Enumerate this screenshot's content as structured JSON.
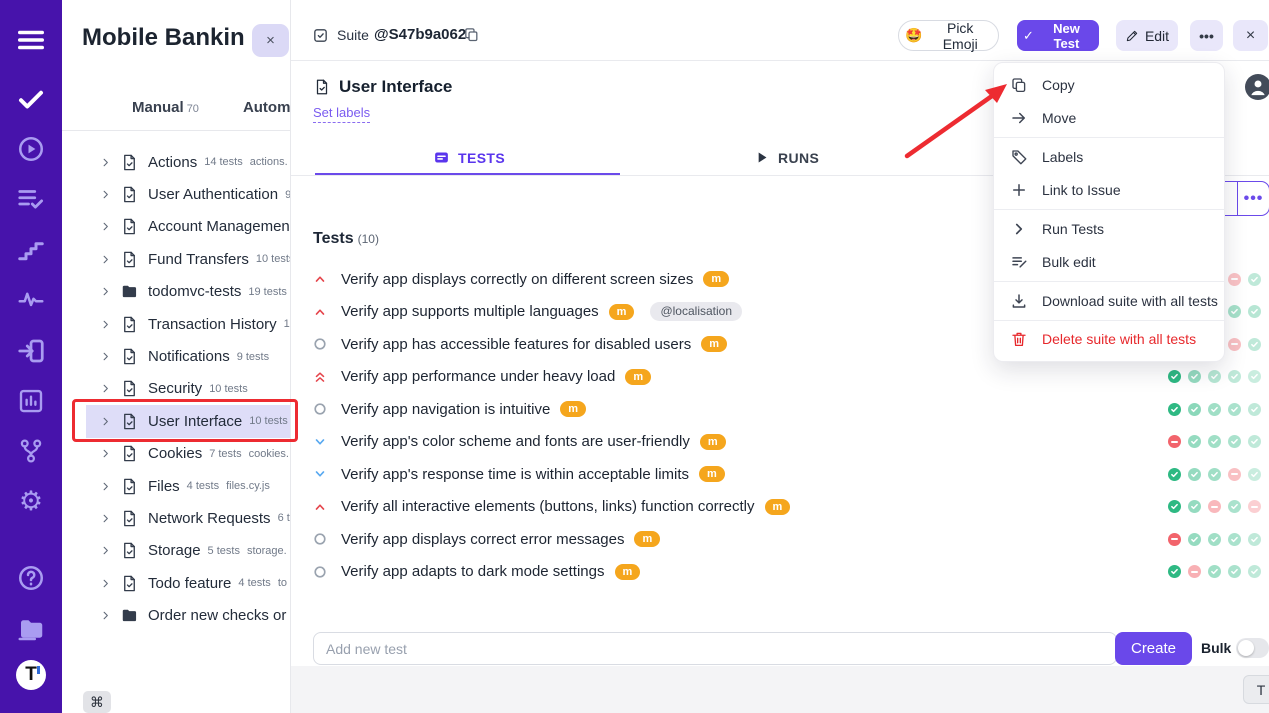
{
  "colors": {
    "rail_bg": "#4713AB",
    "accent": "#6B4AEA",
    "danger": "#E7282C",
    "pass": "#2EB983",
    "fail": "#F2646C",
    "highlight": "#DEDDF8",
    "badge_orange": "#F5A61D",
    "annotation_red": "#ED2B31"
  },
  "rail": {
    "logo_letter": "T",
    "icons": [
      "menu-icon",
      "tasks-check-icon",
      "play-circle-icon",
      "test-list-icon",
      "steps-icon",
      "activity-icon",
      "sign-in-icon",
      "report-chart-icon",
      "branch-icon",
      "settings-gear-icon",
      "help-icon",
      "projects-folder-icon",
      "app-logo"
    ]
  },
  "project": {
    "title": "Mobile Bankin",
    "close_label": "×",
    "manual_tab": {
      "label": "Manual",
      "count": "70"
    },
    "automated_tab": {
      "label": "Automate"
    }
  },
  "tree": {
    "items": [
      {
        "name": "Actions",
        "count": "14 tests",
        "extra": "actions.",
        "icon": "suite"
      },
      {
        "name": "User Authentication",
        "count": "9",
        "extra": "",
        "icon": "suite"
      },
      {
        "name": "Account Managemen",
        "count": "",
        "extra": "",
        "icon": "suite"
      },
      {
        "name": "Fund Transfers",
        "count": "10 tests",
        "extra": "",
        "icon": "suite"
      },
      {
        "name": "todomvc-tests",
        "count": "19 tests",
        "extra": "",
        "icon": "folder"
      },
      {
        "name": "Transaction History",
        "count": "1",
        "extra": "",
        "icon": "suite"
      },
      {
        "name": "Notifications",
        "count": "9 tests",
        "extra": "",
        "icon": "suite"
      },
      {
        "name": "Security",
        "count": "10 tests",
        "extra": "",
        "icon": "suite"
      },
      {
        "name": "User Interface",
        "count": "10 tests",
        "extra": "",
        "icon": "suite",
        "highlighted": true
      },
      {
        "name": "Cookies",
        "count": "7 tests",
        "extra": "cookies.",
        "icon": "suite"
      },
      {
        "name": "Files",
        "count": "4 tests",
        "extra": "files.cy.js",
        "icon": "suite"
      },
      {
        "name": "Network Requests",
        "count": "6 t",
        "extra": "",
        "icon": "suite"
      },
      {
        "name": "Storage",
        "count": "5 tests",
        "extra": "storage.",
        "icon": "suite"
      },
      {
        "name": "Todo feature",
        "count": "4 tests",
        "extra": "to",
        "icon": "suite"
      },
      {
        "name": "Order new checks or",
        "count": "",
        "extra": "",
        "icon": "folder"
      }
    ]
  },
  "shortcut_badge": "⌘",
  "suite_header": {
    "breadcrumb_label": "Suite",
    "suite_id": "@S47b9a062",
    "pick_emoji_symbol": "🤩",
    "pick_emoji_label": "Pick Emoji",
    "new_test_check": "✓",
    "new_test_label": "New Test",
    "edit_label": "Edit",
    "more_label": "•••",
    "close_label": "×"
  },
  "suite": {
    "title": "User Interface",
    "set_labels_label": "Set labels"
  },
  "tabs": {
    "tests_label": "TESTS",
    "runs_label": "RUNS"
  },
  "hidden_toolbar": {
    "partial_text": "e",
    "more_label": "•••"
  },
  "tests_section": {
    "heading": "Tests",
    "count": "(10)",
    "items": [
      {
        "priority": "high",
        "title": "Verify app displays correctly on different screen sizes",
        "badge": "m",
        "dots": [
          null,
          null,
          null,
          {
            "s": "fail",
            "o": 0.38
          },
          {
            "s": "pass",
            "o": 0.3
          }
        ]
      },
      {
        "priority": "high",
        "title": "Verify app supports multiple languages",
        "badge": "m",
        "tag": "@localisation",
        "dots": [
          null,
          null,
          null,
          {
            "s": "pass",
            "o": 0.42
          },
          {
            "s": "pass",
            "o": 0.34
          }
        ]
      },
      {
        "priority": "normal",
        "title": "Verify app has accessible features for disabled users",
        "badge": "m",
        "dots": [
          {
            "s": "pass",
            "o": 1
          },
          {
            "s": "pass",
            "o": 0.5
          },
          {
            "s": "pass",
            "o": 0.42
          },
          {
            "s": "fail",
            "o": 0.4
          },
          {
            "s": "pass",
            "o": 0.3
          }
        ]
      },
      {
        "priority": "critical",
        "title": "Verify app performance under heavy load",
        "badge": "m",
        "dots": [
          {
            "s": "pass",
            "o": 1
          },
          {
            "s": "pass",
            "o": 0.5
          },
          {
            "s": "pass",
            "o": 0.35
          },
          {
            "s": "pass",
            "o": 0.3
          },
          {
            "s": "pass",
            "o": 0.25
          }
        ]
      },
      {
        "priority": "normal",
        "title": "Verify app navigation is intuitive",
        "badge": "m",
        "dots": [
          {
            "s": "pass",
            "o": 1
          },
          {
            "s": "pass",
            "o": 0.55
          },
          {
            "s": "pass",
            "o": 0.45
          },
          {
            "s": "pass",
            "o": 0.4
          },
          {
            "s": "pass",
            "o": 0.3
          }
        ]
      },
      {
        "priority": "low",
        "title": "Verify app's color scheme and fonts are user-friendly",
        "badge": "m",
        "dots": [
          {
            "s": "fail",
            "o": 1
          },
          {
            "s": "pass",
            "o": 0.5
          },
          {
            "s": "pass",
            "o": 0.45
          },
          {
            "s": "pass",
            "o": 0.4
          },
          {
            "s": "pass",
            "o": 0.3
          }
        ]
      },
      {
        "priority": "low",
        "title": "Verify app's response time is within acceptable limits",
        "badge": "m",
        "dots": [
          {
            "s": "pass",
            "o": 1
          },
          {
            "s": "pass",
            "o": 0.5
          },
          {
            "s": "pass",
            "o": 0.45
          },
          {
            "s": "fail",
            "o": 0.4
          },
          {
            "s": "pass",
            "o": 0.25
          }
        ]
      },
      {
        "priority": "high",
        "title": "Verify all interactive elements (buttons, links) function correctly",
        "badge": "m",
        "dots": [
          {
            "s": "pass",
            "o": 1
          },
          {
            "s": "pass",
            "o": 0.5
          },
          {
            "s": "fail",
            "o": 0.45
          },
          {
            "s": "pass",
            "o": 0.4
          },
          {
            "s": "fail",
            "o": 0.3
          }
        ]
      },
      {
        "priority": "normal",
        "title": "Verify app displays correct error messages",
        "badge": "m",
        "dots": [
          {
            "s": "fail",
            "o": 1
          },
          {
            "s": "pass",
            "o": 0.5
          },
          {
            "s": "pass",
            "o": 0.45
          },
          {
            "s": "pass",
            "o": 0.4
          },
          {
            "s": "pass",
            "o": 0.3
          }
        ]
      },
      {
        "priority": "normal",
        "title": "Verify app adapts to dark mode settings",
        "badge": "m",
        "dots": [
          {
            "s": "pass",
            "o": 1
          },
          {
            "s": "fail",
            "o": 0.5
          },
          {
            "s": "pass",
            "o": 0.45
          },
          {
            "s": "pass",
            "o": 0.4
          },
          {
            "s": "pass",
            "o": 0.3
          }
        ]
      }
    ]
  },
  "menu": {
    "items": [
      {
        "icon": "copy-icon",
        "label": "Copy"
      },
      {
        "icon": "move-icon",
        "label": "Move",
        "divider_after": true
      },
      {
        "icon": "labels-tag-icon",
        "label": "Labels"
      },
      {
        "icon": "link-issue-icon",
        "label": "Link to Issue",
        "divider_after": true
      },
      {
        "icon": "run-tests-icon",
        "label": "Run Tests"
      },
      {
        "icon": "bulk-edit-icon",
        "label": "Bulk edit",
        "divider_after": true
      },
      {
        "icon": "download-icon",
        "label": "Download suite with all tests",
        "divider_after": true
      },
      {
        "icon": "delete-trash-icon",
        "label": "Delete suite with all tests",
        "danger": true
      }
    ]
  },
  "composer": {
    "placeholder": "Add new test",
    "create_label": "Create",
    "bulk_label": "Bulk"
  },
  "footer_hint": "T"
}
